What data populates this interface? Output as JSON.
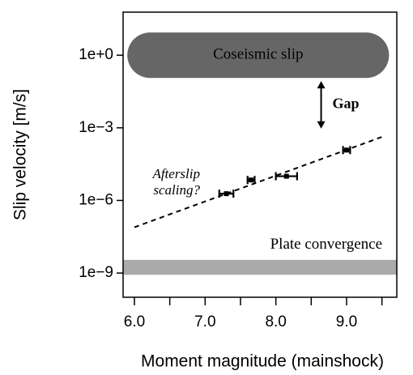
{
  "chart_data": {
    "type": "scatter",
    "xlabel": "Moment magnitude (mainshock)",
    "ylabel": "Slip velocity [m/s]",
    "log_y": true,
    "xlim": [
      5.84,
      9.71
    ],
    "ylim": [
      1e-10,
      60
    ],
    "xticks": [
      {
        "value": 6,
        "label": "6.0"
      },
      {
        "value": 7,
        "label": "7.0"
      },
      {
        "value": 8,
        "label": "8.0"
      },
      {
        "value": 9,
        "label": "9.0"
      }
    ],
    "xminor_ticks": [
      6.5,
      7.5,
      8.5,
      9.5
    ],
    "yticks": [
      {
        "value": 1,
        "label": "1e+0"
      },
      {
        "value": 0.001,
        "label": "1e−3"
      },
      {
        "value": 1e-06,
        "label": "1e−6"
      },
      {
        "value": 1e-09,
        "label": "1e−9"
      }
    ],
    "series": [
      {
        "color": "#000000",
        "x": [
          7.3,
          7.65,
          8.15,
          9.0
        ],
        "xerr": [
          0.1,
          0.05,
          0.15,
          0.05
        ],
        "values": [
          1.9e-06,
          7e-06,
          1e-05,
          0.00012
        ]
      }
    ],
    "fit_line": {
      "x": [
        6,
        9.5
      ],
      "y": [
        7.8e-08,
        0.00042
      ],
      "color": "#000000"
    },
    "bands": [
      {
        "label": "Coseismic slip",
        "x": [
          5.9,
          9.6
        ],
        "y": [
          0.115,
          8.7
        ],
        "color": "#666666",
        "text_color": "#ffffff"
      },
      {
        "label": "Plate convergence",
        "x": [
          5.84,
          9.71
        ],
        "y": [
          8.5e-10,
          3.5e-09
        ],
        "color": "#aaaaaa",
        "text_color": "#999999"
      }
    ],
    "gap": {
      "label": "Gap",
      "x": 8.64,
      "y": [
        0.00093,
        0.085
      ]
    },
    "annotation": {
      "lines": [
        "Afterslip",
        "scaling?"
      ]
    }
  }
}
